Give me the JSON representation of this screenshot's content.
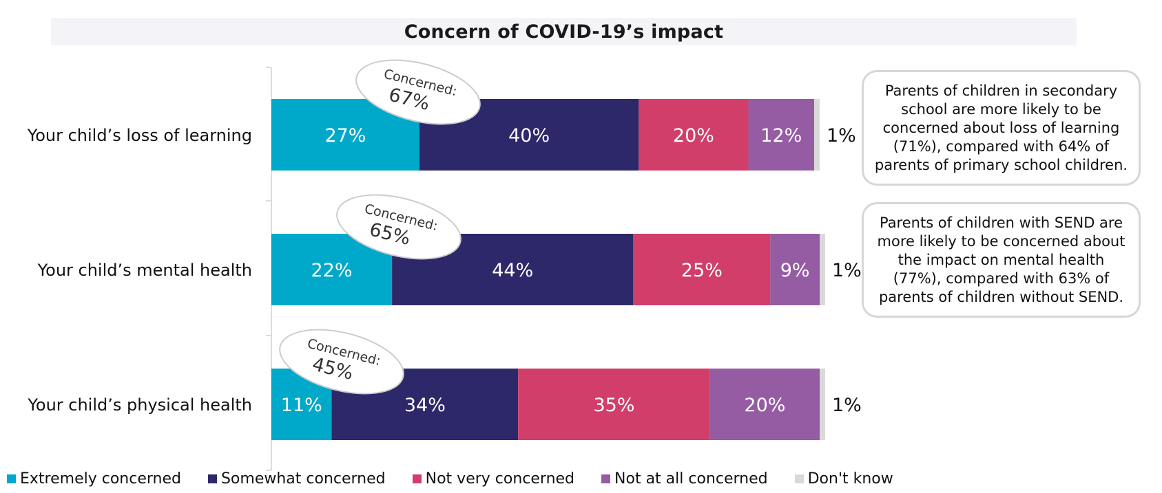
{
  "title": "Concern of COVID-19’s impact",
  "chart_data": {
    "type": "bar",
    "orientation": "horizontal-stacked-100",
    "categories": [
      "Your child’s loss of learning",
      "Your child’s mental health",
      "Your child’s physical health"
    ],
    "series": [
      {
        "name": "Extremely concerned",
        "color": "#00a9c9",
        "values": [
          27,
          22,
          11
        ]
      },
      {
        "name": "Somewhat concerned",
        "color": "#2d2869",
        "values": [
          40,
          44,
          34
        ]
      },
      {
        "name": "Not very concerned",
        "color": "#d03e69",
        "values": [
          20,
          25,
          35
        ]
      },
      {
        "name": "Not at all concerned",
        "color": "#955ca4",
        "values": [
          12,
          9,
          20
        ]
      },
      {
        "name": "Don't know",
        "color": "#d9d9d9",
        "values": [
          1,
          1,
          1
        ]
      }
    ],
    "value_labels": [
      [
        "27%",
        "40%",
        "20%",
        "12%",
        "1%"
      ],
      [
        "22%",
        "44%",
        "25%",
        "9%",
        "1%"
      ],
      [
        "11%",
        "34%",
        "35%",
        "20%",
        "1%"
      ]
    ],
    "concerned_callouts": [
      {
        "label": "Concerned:",
        "value": "67%"
      },
      {
        "label": "Concerned:",
        "value": "65%"
      },
      {
        "label": "Concerned:",
        "value": "45%"
      }
    ],
    "legend_position": "bottom",
    "grid": false
  },
  "notes": [
    "Parents of children in secondary school are more likely to be concerned about loss of learning (71%), compared with 64% of parents of primary school children.",
    "Parents of children with SEND are more likely to be concerned about the impact on mental health (77%), compared with 63% of parents of children without SEND."
  ]
}
